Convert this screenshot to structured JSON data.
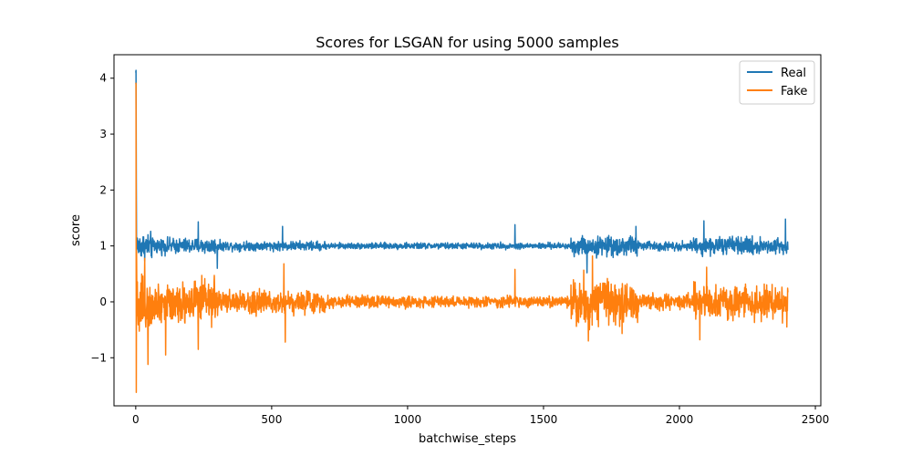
{
  "chart_data": {
    "type": "line",
    "title": "Scores for LSGAN for using 5000 samples",
    "xlabel": "batchwise_steps",
    "ylabel": "score",
    "xlim": [
      -80,
      2520
    ],
    "ylim": [
      -1.86,
      4.42
    ],
    "xticks": [
      0,
      500,
      1000,
      1500,
      2000,
      2500
    ],
    "xtick_labels": [
      "0",
      "500",
      "1000",
      "1500",
      "2000",
      "2500"
    ],
    "yticks": [
      -1,
      0,
      1,
      2,
      3,
      4
    ],
    "ytick_labels": [
      "−1",
      "0",
      "1",
      "2",
      "3",
      "4"
    ],
    "grid": false,
    "legend_position": "top-right",
    "n_points": 2400,
    "series": [
      {
        "name": "Real",
        "color": "#1f77b4",
        "start_values": [
          4.1,
          4.14,
          2.2,
          0.9,
          1.1,
          0.95
        ],
        "center": 1.0,
        "regime_amplitudes": [
          {
            "x": [
              0,
              60
            ],
            "amp": 0.35
          },
          {
            "x": [
              60,
              300
            ],
            "amp": 0.2
          },
          {
            "x": [
              300,
              700
            ],
            "amp": 0.12
          },
          {
            "x": [
              700,
              1600
            ],
            "amp": 0.08
          },
          {
            "x": [
              1600,
              1850
            ],
            "amp": 0.25
          },
          {
            "x": [
              1850,
              2050
            ],
            "amp": 0.12
          },
          {
            "x": [
              2050,
              2400
            ],
            "amp": 0.22
          }
        ],
        "spikes": [
          {
            "x": 230,
            "y": 1.43
          },
          {
            "x": 300,
            "y": 0.6
          },
          {
            "x": 540,
            "y": 1.35
          },
          {
            "x": 1395,
            "y": 1.38
          },
          {
            "x": 1660,
            "y": 0.52
          },
          {
            "x": 1840,
            "y": 1.35
          },
          {
            "x": 2090,
            "y": 1.45
          },
          {
            "x": 2390,
            "y": 1.48
          }
        ]
      },
      {
        "name": "Fake",
        "color": "#ff7f0e",
        "start_values": [
          3.92,
          3.9,
          -1.62,
          0.9,
          0.2,
          -0.2
        ],
        "center": 0.0,
        "regime_amplitudes": [
          {
            "x": [
              0,
              60
            ],
            "amp": 0.9
          },
          {
            "x": [
              60,
              300
            ],
            "amp": 0.55
          },
          {
            "x": [
              300,
              700
            ],
            "amp": 0.3
          },
          {
            "x": [
              700,
              1600
            ],
            "amp": 0.15
          },
          {
            "x": [
              1600,
              1850
            ],
            "amp": 0.6
          },
          {
            "x": [
              1850,
              2050
            ],
            "amp": 0.2
          },
          {
            "x": [
              2050,
              2400
            ],
            "amp": 0.45
          }
        ],
        "spikes": [
          {
            "x": 45,
            "y": -1.12
          },
          {
            "x": 110,
            "y": -0.95
          },
          {
            "x": 230,
            "y": -0.85
          },
          {
            "x": 545,
            "y": 0.68
          },
          {
            "x": 550,
            "y": -0.72
          },
          {
            "x": 1395,
            "y": 0.58
          },
          {
            "x": 1665,
            "y": -0.7
          },
          {
            "x": 1680,
            "y": 0.82
          },
          {
            "x": 2075,
            "y": -0.68
          },
          {
            "x": 2100,
            "y": 0.62
          },
          {
            "x": 2395,
            "y": -0.45
          }
        ]
      }
    ]
  }
}
